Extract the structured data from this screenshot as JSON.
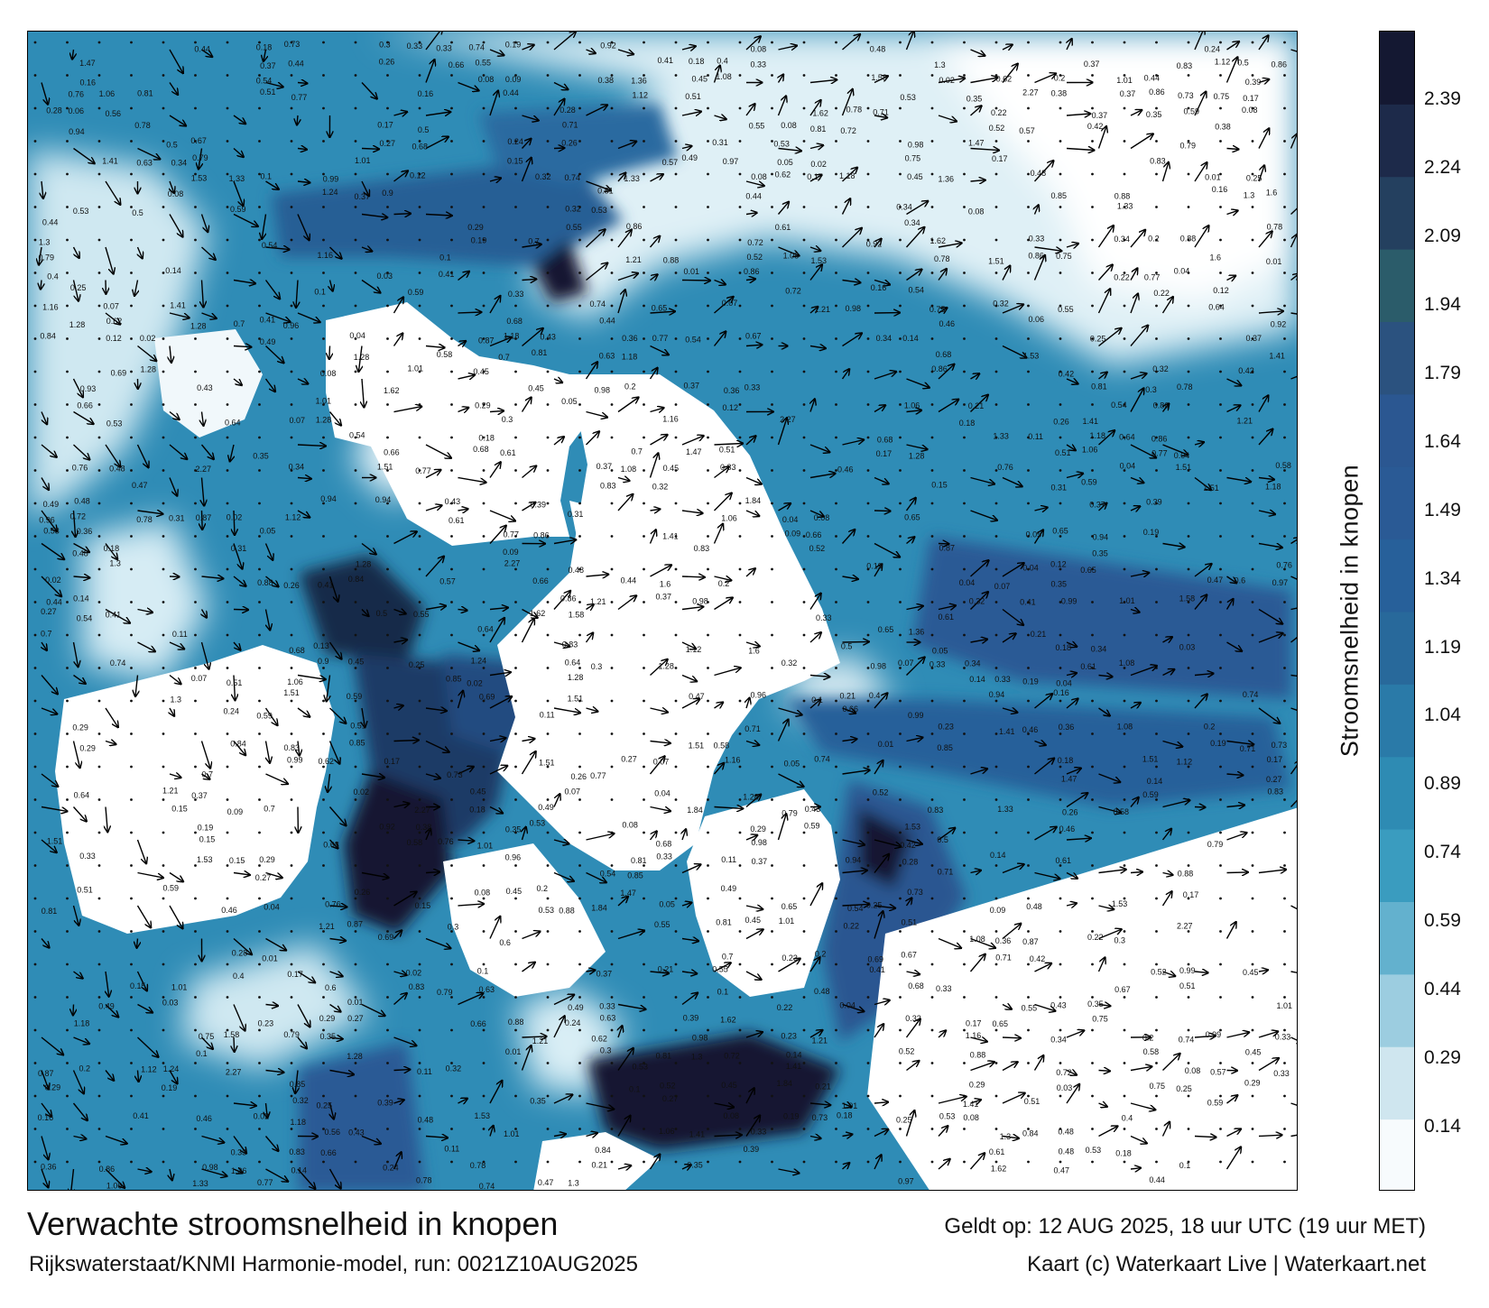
{
  "map": {
    "title": "Verwachte stroomsnelheid in knopen",
    "valid_time": "Geldt op: 12 AUG 2025, 18 uur UTC (19 uur MET)",
    "source": "Rijkswaterstaat/KNMI Harmonie-model, run: 0021Z10AUG2025",
    "copyright": "Kaart (c) Waterkaart Live | Waterkaart.net",
    "speed_labels": [
      "0.52",
      "0.4",
      "0.34",
      "0.33",
      "0.49",
      "0.26",
      "0.33",
      "0.24",
      "0.45",
      "0.31",
      "0.3",
      "0.22",
      "0.2",
      "0.19",
      "0.21",
      "0.25",
      "0.47",
      "0.44",
      "0.42",
      "0.6",
      "0.74",
      "0.84",
      "0.87",
      "1.01",
      "0.9",
      "0.76",
      "0.68",
      "0.79",
      "0.35",
      "0.28",
      "0.39",
      "0.51",
      "0.56",
      "0.55",
      "0.61",
      "0.65",
      "1.47",
      "1.36",
      "1.84",
      "2.27",
      "1.51",
      "1.16",
      "1.28",
      "1.33",
      "1.41",
      "1.21",
      "1.12",
      "1.08",
      "0.93",
      "0.85",
      "0.78",
      "0.63",
      "0.57",
      "0.46",
      "0.38",
      "0.36",
      "0.27",
      "0.23",
      "0.18",
      "0.16",
      "0.14",
      "0.13",
      "0.12",
      "0.11",
      "0.1",
      "0.09",
      "0.08",
      "0.07",
      "0.06",
      "0.05",
      "0.04",
      "0.03",
      "0.02",
      "0.01",
      "0.17",
      "0.15",
      "1.62",
      "1.53",
      "1.6",
      "1.3",
      "1.58",
      "1.24",
      "1.18",
      "1.06",
      "0.99",
      "0.98",
      "0.97",
      "0.96",
      "0.94",
      "0.92",
      "0.88",
      "0.86",
      "0.83",
      "0.81",
      "0.77",
      "0.75",
      "0.73",
      "0.72",
      "0.71",
      "0.7",
      "0.69",
      "0.67",
      "0.66",
      "0.64",
      "0.62",
      "0.59",
      "0.58",
      "0.54",
      "0.53",
      "0.5",
      "0.48",
      "0.43",
      "0.41",
      "0.37",
      "0.32",
      "0.29"
    ]
  },
  "colorbar": {
    "title": "Stroomsnelheid in knopen",
    "tick_labels": [
      "2.39",
      "2.24",
      "2.09",
      "1.94",
      "1.79",
      "1.64",
      "1.49",
      "1.34",
      "1.19",
      "1.04",
      "0.89",
      "0.74",
      "0.59",
      "0.44",
      "0.29",
      "0.14"
    ],
    "tick_values": [
      2.39,
      2.24,
      2.09,
      1.94,
      1.79,
      1.64,
      1.49,
      1.34,
      1.19,
      1.04,
      0.89,
      0.74,
      0.59,
      0.44,
      0.29,
      0.14
    ],
    "range": [
      0,
      2.54
    ],
    "colors": [
      "#f7fbfd",
      "#cfe6ef",
      "#9ccde0",
      "#63b1ce",
      "#3a9cbf",
      "#2e8bb3",
      "#2a7aa8",
      "#28699b",
      "#27609a",
      "#2a5a95",
      "#2b5791",
      "#2b527f",
      "#2b5c6a",
      "#24405f",
      "#1d2a4a",
      "#141832"
    ]
  }
}
